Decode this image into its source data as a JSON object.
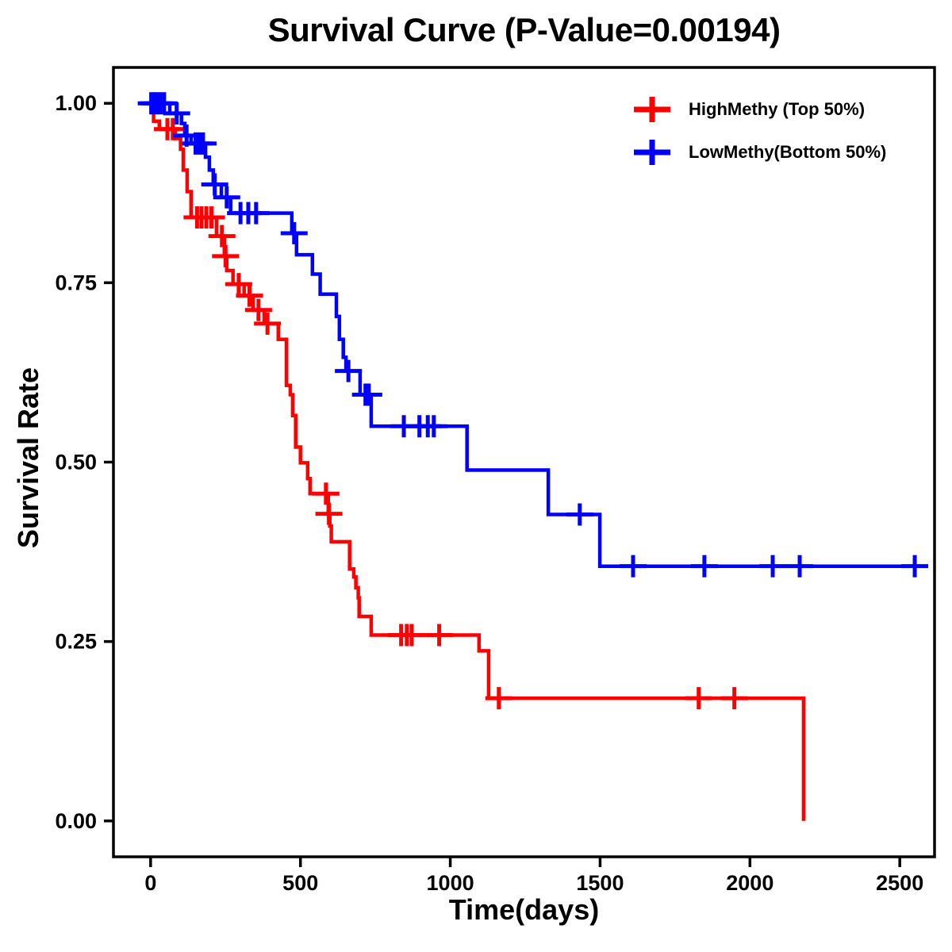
{
  "title": "Survival Curve (P-Value=0.00194)",
  "axes": {
    "x_label": "Time(days)",
    "y_label": "Survival Rate"
  },
  "legend": {
    "position": "top-right",
    "items": [
      {
        "label": "HighMethy (Top 50%)",
        "color": "#FF0000",
        "marker": "plus"
      },
      {
        "label": "LowMethy(Bottom 50%)",
        "color": "#0000FF",
        "marker": "plus"
      }
    ]
  },
  "chart_data": {
    "type": "line",
    "subtype": "kaplan_meier_step",
    "title": "Survival Curve (P-Value=0.00194)",
    "p_value": "0.00194",
    "xlabel": "Time(days)",
    "ylabel": "Survival Rate",
    "xlim": [
      -124,
      2616
    ],
    "ylim": [
      -0.05,
      1.05
    ],
    "grid": false,
    "legend_position": "top-right",
    "x_ticks": [
      {
        "v": 0,
        "label": "0"
      },
      {
        "v": 500,
        "label": "500"
      },
      {
        "v": 1000,
        "label": "1000"
      },
      {
        "v": 1500,
        "label": "1500"
      },
      {
        "v": 2000,
        "label": "2000"
      },
      {
        "v": 2500,
        "label": "2500"
      }
    ],
    "y_ticks": [
      {
        "v": 0.0,
        "label": "0.00"
      },
      {
        "v": 0.25,
        "label": "0.25"
      },
      {
        "v": 0.5,
        "label": "0.50"
      },
      {
        "v": 0.75,
        "label": "0.75"
      },
      {
        "v": 1.0,
        "label": "1.00"
      }
    ],
    "series": [
      {
        "name": "HighMethy (Top 50%)",
        "color": "#FF0000",
        "x_start": -25,
        "x_end": 2179,
        "steps": [
          [
            10,
            0.975
          ],
          [
            29,
            0.964
          ],
          [
            82,
            0.951
          ],
          [
            100,
            0.936
          ],
          [
            109,
            0.907
          ],
          [
            122,
            0.877
          ],
          [
            135,
            0.841
          ],
          [
            220,
            0.815
          ],
          [
            246,
            0.787
          ],
          [
            254,
            0.767
          ],
          [
            275,
            0.748
          ],
          [
            312,
            0.732
          ],
          [
            342,
            0.712
          ],
          [
            379,
            0.693
          ],
          [
            426,
            0.671
          ],
          [
            453,
            0.607
          ],
          [
            466,
            0.594
          ],
          [
            474,
            0.565
          ],
          [
            484,
            0.521
          ],
          [
            500,
            0.499
          ],
          [
            524,
            0.477
          ],
          [
            532,
            0.456
          ],
          [
            593,
            0.428
          ],
          [
            598,
            0.411
          ],
          [
            603,
            0.389
          ],
          [
            664,
            0.351
          ],
          [
            678,
            0.34
          ],
          [
            685,
            0.325
          ],
          [
            693,
            0.311
          ],
          [
            696,
            0.285
          ],
          [
            736,
            0.259
          ],
          [
            1096,
            0.237
          ],
          [
            1128,
            0.171
          ],
          [
            2179,
            0.0
          ]
        ],
        "censors": [
          [
            56,
            0.964
          ],
          [
            74,
            0.964
          ],
          [
            155,
            0.841
          ],
          [
            170,
            0.841
          ],
          [
            186,
            0.841
          ],
          [
            203,
            0.841
          ],
          [
            238,
            0.815
          ],
          [
            250,
            0.787
          ],
          [
            294,
            0.748
          ],
          [
            330,
            0.732
          ],
          [
            360,
            0.712
          ],
          [
            390,
            0.693
          ],
          [
            585,
            0.456
          ],
          [
            595,
            0.428
          ],
          [
            836,
            0.259
          ],
          [
            855,
            0.259
          ],
          [
            871,
            0.259
          ],
          [
            963,
            0.259
          ],
          [
            1162,
            0.171
          ],
          [
            1829,
            0.171
          ],
          [
            1948,
            0.171
          ]
        ]
      },
      {
        "name": "LowMethy(Bottom 50%)",
        "color": "#0000FF",
        "x_start": -25,
        "x_end": 2584,
        "steps": [
          [
            64,
            0.986
          ],
          [
            103,
            0.972
          ],
          [
            114,
            0.955
          ],
          [
            135,
            0.944
          ],
          [
            183,
            0.925
          ],
          [
            196,
            0.907
          ],
          [
            209,
            0.887
          ],
          [
            236,
            0.869
          ],
          [
            267,
            0.847
          ],
          [
            471,
            0.819
          ],
          [
            487,
            0.789
          ],
          [
            540,
            0.762
          ],
          [
            566,
            0.734
          ],
          [
            620,
            0.703
          ],
          [
            630,
            0.671
          ],
          [
            643,
            0.646
          ],
          [
            652,
            0.627
          ],
          [
            699,
            0.594
          ],
          [
            736,
            0.55
          ],
          [
            1056,
            0.489
          ],
          [
            1327,
            0.427
          ],
          [
            1499,
            0.355
          ]
        ],
        "censors": [
          [
            2,
            1.0
          ],
          [
            12,
            1.0
          ],
          [
            22,
            1.0
          ],
          [
            32,
            1.0
          ],
          [
            45,
            1.0
          ],
          [
            87,
            0.986
          ],
          [
            120,
            0.955
          ],
          [
            150,
            0.944
          ],
          [
            163,
            0.944
          ],
          [
            175,
            0.944
          ],
          [
            214,
            0.887
          ],
          [
            254,
            0.869
          ],
          [
            300,
            0.847
          ],
          [
            326,
            0.847
          ],
          [
            352,
            0.847
          ],
          [
            479,
            0.819
          ],
          [
            660,
            0.627
          ],
          [
            717,
            0.594
          ],
          [
            728,
            0.594
          ],
          [
            845,
            0.55
          ],
          [
            897,
            0.55
          ],
          [
            925,
            0.55
          ],
          [
            945,
            0.55
          ],
          [
            1432,
            0.427
          ],
          [
            1610,
            0.355
          ],
          [
            1848,
            0.355
          ],
          [
            2076,
            0.355
          ],
          [
            2166,
            0.355
          ],
          [
            2550,
            0.355
          ]
        ]
      }
    ]
  }
}
